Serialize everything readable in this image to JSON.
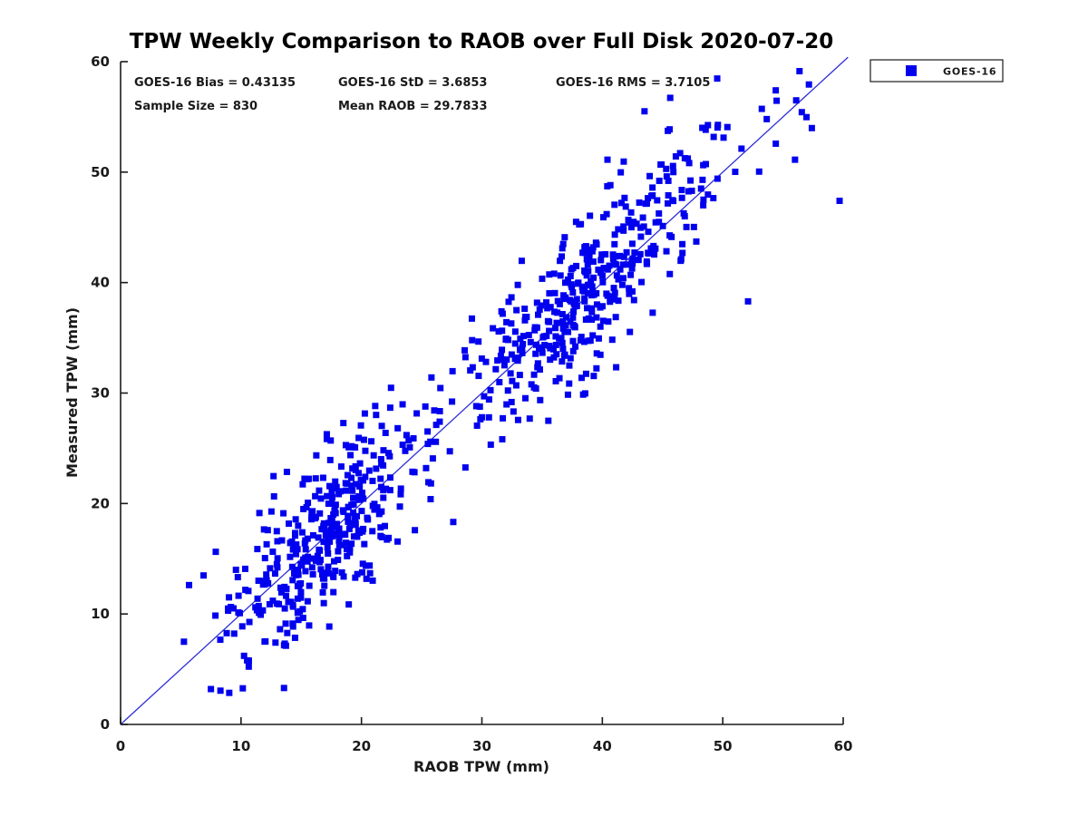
{
  "page": {
    "background": "#ffffff"
  },
  "chart_data": {
    "type": "scatter",
    "title": "TPW Weekly Comparison to RAOB over Full Disk 2020-07-20",
    "stats": {
      "row1": [
        "GOES-16 Bias = 0.43135",
        "GOES-16 StD = 3.6853",
        "GOES-16 RMS = 3.7105"
      ],
      "row2": [
        "Sample Size = 830",
        "Mean RAOB = 29.7833"
      ]
    },
    "axes": {
      "xlabel": "RAOB TPW (mm)",
      "ylabel": "Measured TPW (mm)",
      "xlim": [
        0,
        60
      ],
      "ylim": [
        0,
        60
      ],
      "xticks": [
        0,
        10,
        20,
        30,
        40,
        50,
        60
      ],
      "yticks": [
        0,
        10,
        20,
        30,
        40,
        50,
        60
      ],
      "grid": false
    },
    "legend": {
      "label": "GOES-16",
      "position": "top-right-outside"
    },
    "colors": {
      "marker": "#0000ee",
      "identity_line": "#2e2ed8",
      "axis": "#1a1a1a",
      "legend_border": "#1a1a1a",
      "background": "#ffffff"
    },
    "identity_line": {
      "x": [
        0,
        60.4
      ],
      "y": [
        0,
        60.4
      ]
    },
    "series": [
      {
        "name": "GOES-16",
        "marker": "square",
        "marker_size_px": 7,
        "summary": {
          "bias": 0.43135,
          "std": 3.6853,
          "rms": 3.7105,
          "sample_size": 830,
          "mean_raob": 29.7833
        },
        "points_spec": {
          "note": "830 points; cloud approximated from pixels via deterministic seeded mixture: y = x + bias + noise",
          "seed": 20200720,
          "n": 830,
          "clusters": [
            {
              "type": "normal",
              "weight": 0.41,
              "mean": 16.8,
              "sd": 3.9
            },
            {
              "type": "normal",
              "weight": 0.44,
              "mean": 38.8,
              "sd": 4.9
            },
            {
              "type": "uniform",
              "weight": 0.15,
              "min": 4.3,
              "max": 57.5
            }
          ],
          "y_bias": 0.43,
          "y_sd": 3.55,
          "x_clip": [
            4.2,
            59.8
          ],
          "y_clip": [
            1.2,
            59.2
          ],
          "outliers": [
            [
              7.5,
              3.2
            ],
            [
              59.7,
              47.4
            ],
            [
              52.1,
              38.3
            ],
            [
              54.4,
              57.4
            ]
          ]
        }
      }
    ]
  }
}
